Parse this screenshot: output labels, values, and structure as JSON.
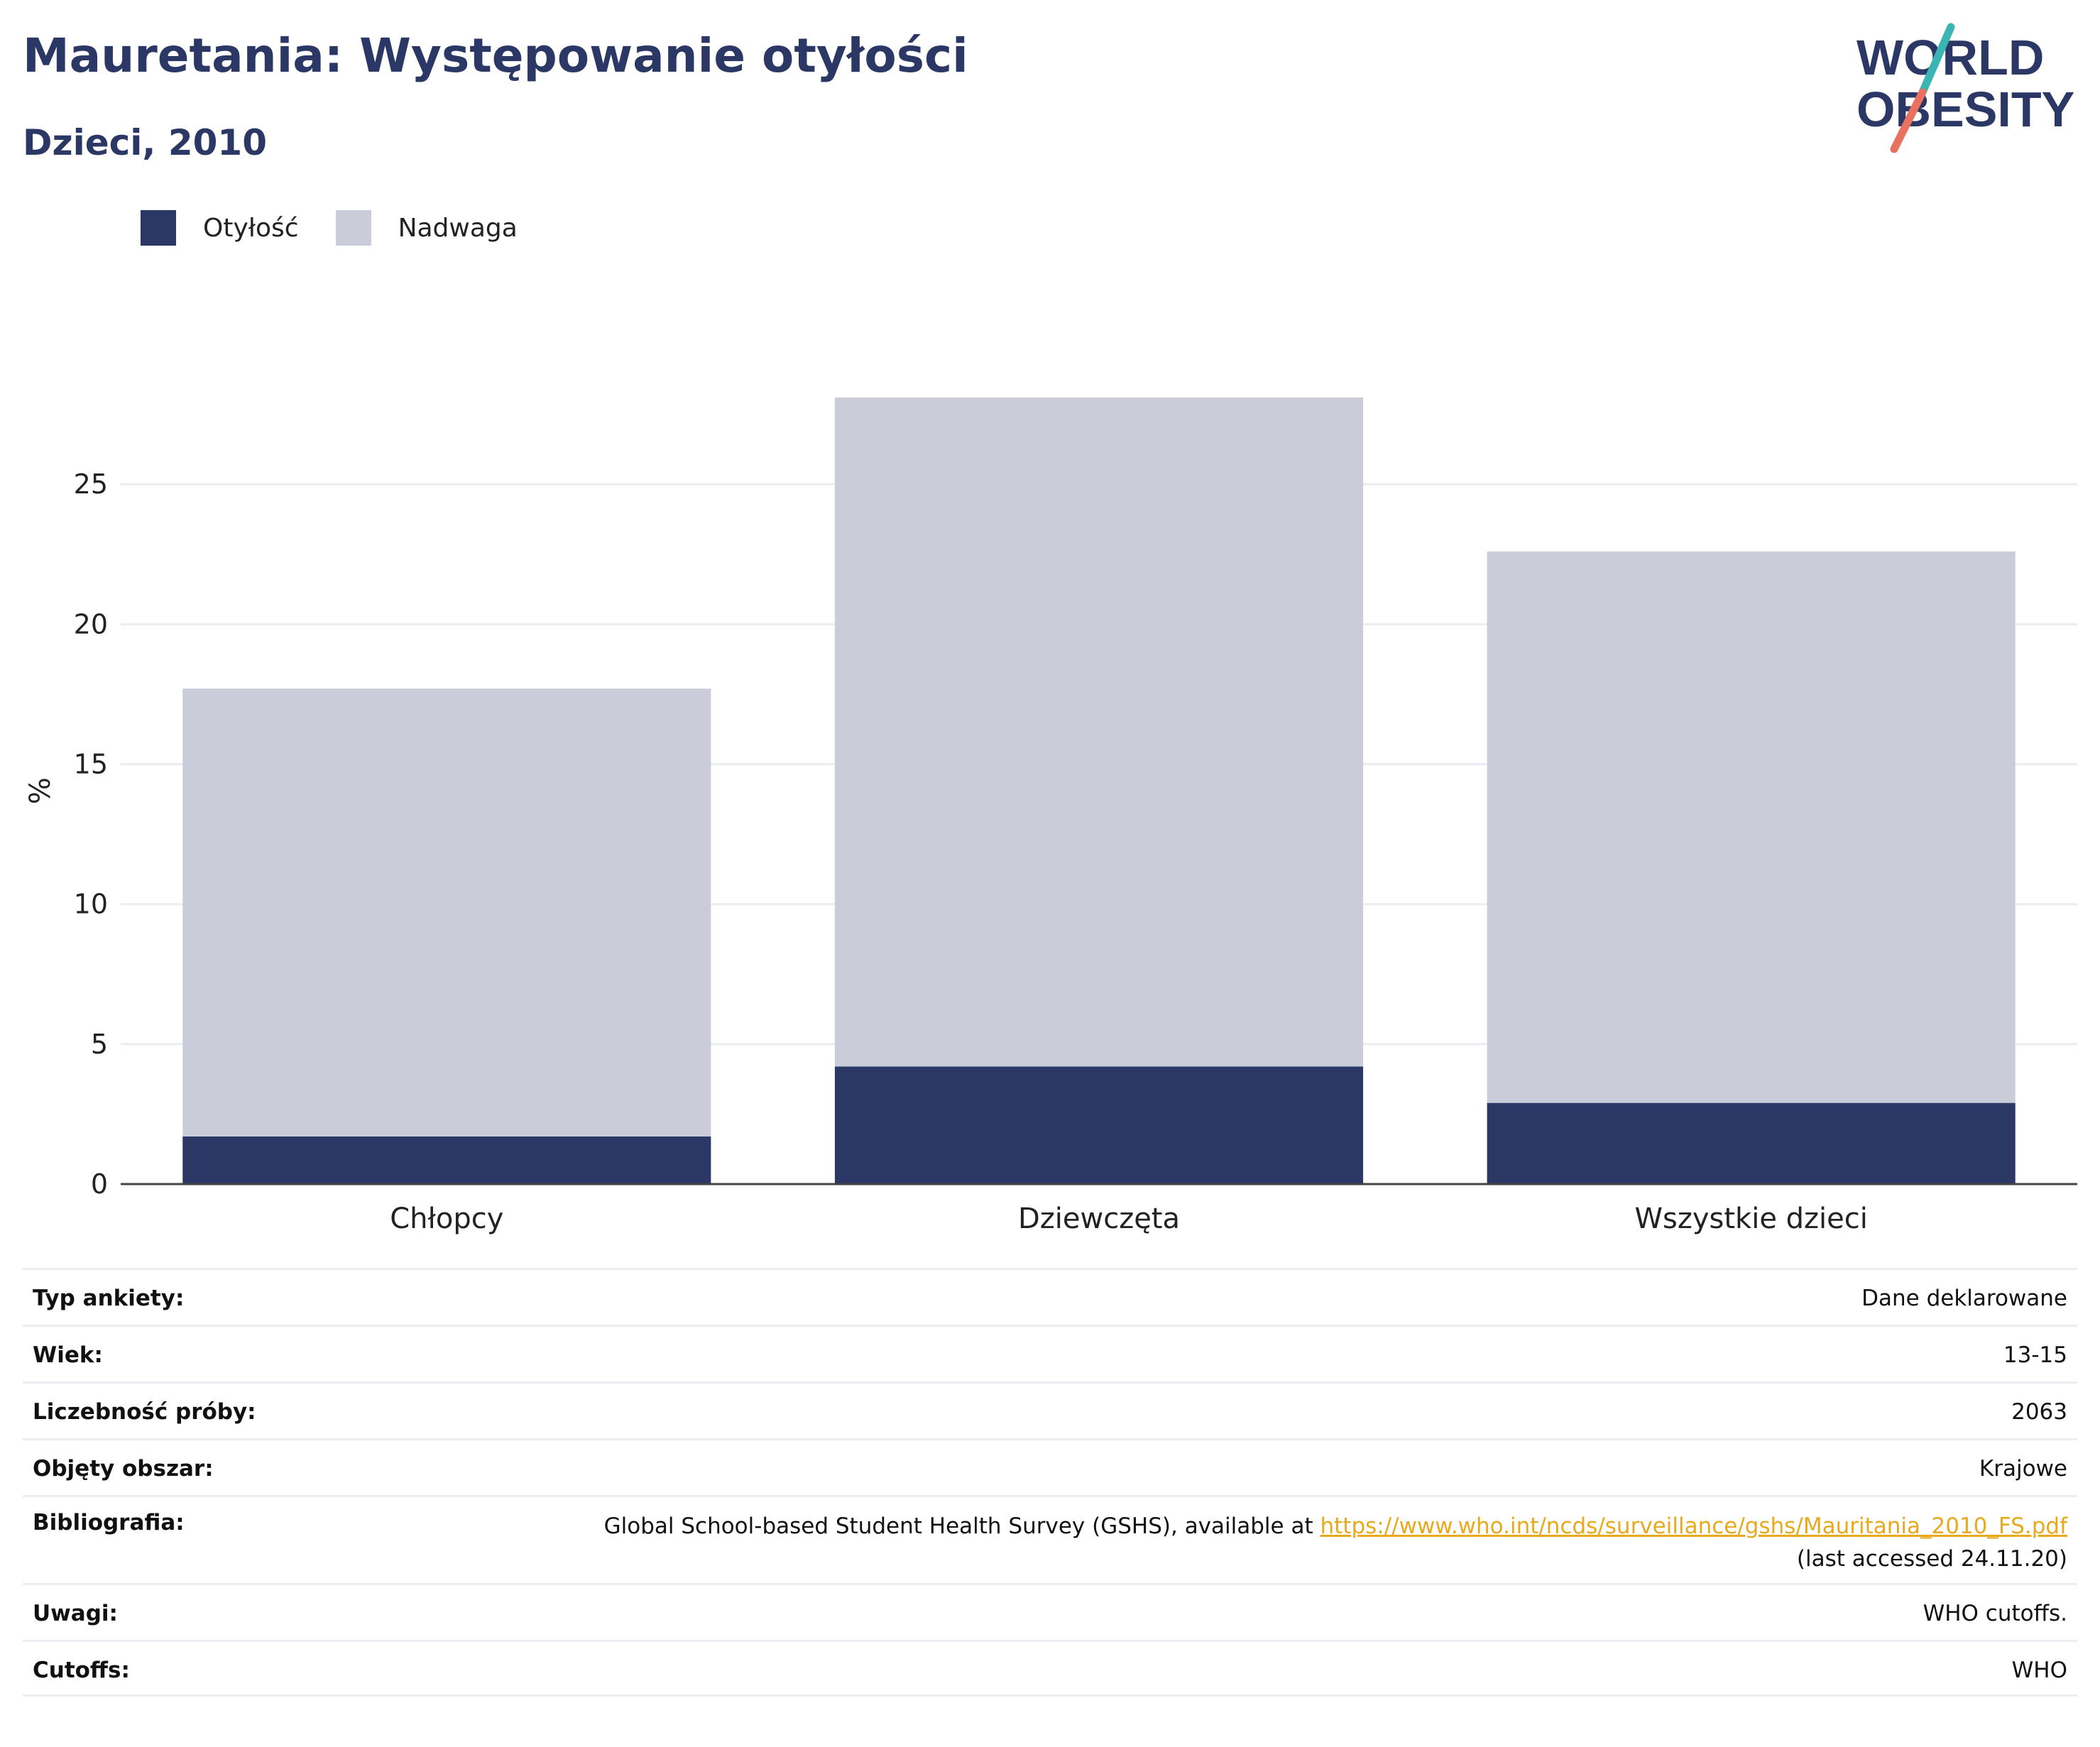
{
  "header": {
    "title": "Mauretania: Występowanie otyłości",
    "subtitle": "Dzieci, 2010",
    "logo_line1": "WORLD",
    "logo_line2": "OBESITY"
  },
  "colors": {
    "obesity": "#2b3764",
    "overweight": "#cacdd9",
    "title": "#2b3764",
    "link": "#e9a91c",
    "logo_teal": "#3bb4b4",
    "logo_coral": "#e8715f"
  },
  "chart_data": {
    "type": "bar",
    "stacked": true,
    "categories": [
      "Chłopcy",
      "Dziewczęta",
      "Wszystkie dzieci"
    ],
    "series": [
      {
        "name": "Otyłość",
        "values": [
          1.7,
          4.2,
          2.9
        ]
      },
      {
        "name": "Nadwaga",
        "values": [
          16.0,
          23.9,
          19.7
        ]
      }
    ],
    "ylabel": "%",
    "xlabel": "",
    "ylim": [
      0,
      28.1
    ],
    "yticks": [
      0,
      5,
      10,
      15,
      20,
      25
    ],
    "grid": true,
    "legend_position": "top-left"
  },
  "meta": [
    {
      "key": "Typ ankiety:",
      "value": "Dane deklarowane"
    },
    {
      "key": "Wiek:",
      "value": "13-15"
    },
    {
      "key": "Liczebność próby:",
      "value": "2063"
    },
    {
      "key": "Objęty obszar:",
      "value": "Krajowe"
    },
    {
      "key": "Bibliografia:",
      "value_prefix": "Global School-based Student Health Survey (GSHS), available at ",
      "link": "https://www.who.int/ncds/surveillance/gshs/Mauritania_2010_FS.pdf",
      "value_suffix": "(last accessed 24.11.20)"
    },
    {
      "key": "Uwagi:",
      "value": "WHO cutoffs."
    },
    {
      "key": "Cutoffs:",
      "value": "WHO"
    }
  ]
}
